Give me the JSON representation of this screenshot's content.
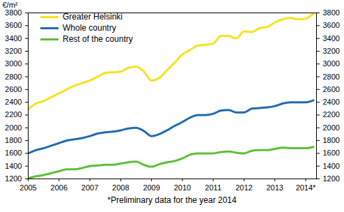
{
  "chart_data": {
    "type": "line",
    "y_label": "€/m²",
    "note": "*Preliminary data for the year 2014",
    "x": [
      2005,
      2005.25,
      2005.5,
      2005.75,
      2006,
      2006.25,
      2006.5,
      2006.75,
      2007,
      2007.25,
      2007.5,
      2007.75,
      2008,
      2008.25,
      2008.5,
      2008.75,
      2009,
      2009.25,
      2009.5,
      2009.75,
      2010,
      2010.25,
      2010.5,
      2010.75,
      2011,
      2011.25,
      2011.5,
      2011.75,
      2012,
      2012.25,
      2012.5,
      2012.75,
      2013,
      2013.25,
      2013.5,
      2013.75,
      2014,
      2014.25
    ],
    "series": [
      {
        "name": "Greater Helsinki",
        "color": "#f7e21b",
        "values": [
          2290,
          2380,
          2420,
          2480,
          2540,
          2600,
          2660,
          2700,
          2740,
          2800,
          2860,
          2870,
          2880,
          2940,
          2960,
          2880,
          2740,
          2780,
          2900,
          3020,
          3150,
          3220,
          3290,
          3300,
          3320,
          3440,
          3440,
          3400,
          3510,
          3500,
          3560,
          3580,
          3650,
          3700,
          3720,
          3700,
          3710,
          3790
        ]
      },
      {
        "name": "Whole country",
        "color": "#1f6bb0",
        "values": [
          1600,
          1650,
          1680,
          1720,
          1760,
          1800,
          1820,
          1840,
          1870,
          1910,
          1930,
          1940,
          1960,
          1990,
          2000,
          1950,
          1870,
          1900,
          1960,
          2030,
          2090,
          2160,
          2200,
          2200,
          2220,
          2270,
          2280,
          2240,
          2240,
          2300,
          2310,
          2320,
          2340,
          2380,
          2400,
          2400,
          2400,
          2430
        ]
      },
      {
        "name": "Rest of the country",
        "color": "#5cbf3a",
        "values": [
          1210,
          1240,
          1260,
          1290,
          1320,
          1350,
          1350,
          1370,
          1400,
          1410,
          1420,
          1420,
          1440,
          1460,
          1470,
          1420,
          1390,
          1430,
          1460,
          1480,
          1520,
          1580,
          1600,
          1600,
          1600,
          1620,
          1630,
          1610,
          1600,
          1640,
          1650,
          1650,
          1670,
          1690,
          1680,
          1680,
          1680,
          1700
        ]
      }
    ],
    "xlim": [
      2005,
      2014.35
    ],
    "xticks": [
      2005,
      2006,
      2007,
      2008,
      2009,
      2010,
      2011,
      2012,
      2013,
      {
        "value": 2014,
        "label": "2014*"
      }
    ],
    "ylim": [
      1200,
      3800
    ],
    "yticks": [
      1200,
      1400,
      1600,
      1800,
      2000,
      2200,
      2400,
      2600,
      2800,
      3000,
      3200,
      3400,
      3600,
      3800
    ],
    "grid": false,
    "legend": "top-left"
  }
}
